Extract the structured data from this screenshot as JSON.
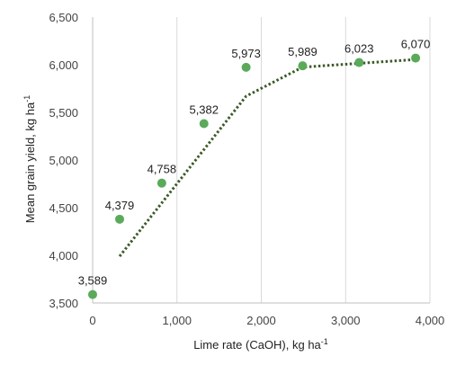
{
  "chart_data": {
    "type": "scatter",
    "title": "",
    "xlabel": "Lime rate (CaOH), kg ha",
    "xlabel_sup": "-1",
    "ylabel": "Mean grain yield, kg ha",
    "ylabel_sup": "-1",
    "xlim": [
      0,
      4000
    ],
    "ylim": [
      3500,
      6500
    ],
    "x_ticks": [
      0,
      1000,
      2000,
      3000,
      4000
    ],
    "x_tick_labels": [
      "0",
      "1,000",
      "2,000",
      "3,000",
      "4,000"
    ],
    "y_ticks": [
      3500,
      4000,
      4500,
      5000,
      5500,
      6000,
      6500
    ],
    "y_tick_labels": [
      "3,500",
      "4,000",
      "4,500",
      "5,000",
      "5,500",
      "6,000",
      "6,500"
    ],
    "grid": "vertical",
    "legend": "none",
    "series": [
      {
        "x": [
          0,
          320,
          820,
          1320,
          1820,
          2490,
          3160,
          3830
        ],
        "y": [
          3589,
          4379,
          4758,
          5382,
          5973,
          5989,
          6023,
          6070
        ],
        "labels": [
          "3,589",
          "4,379",
          "4,758",
          "5,382",
          "5,973",
          "5,989",
          "6,023",
          "6,070"
        ]
      }
    ],
    "trendline": {
      "style": "dotted",
      "x": [
        320,
        1820,
        2490,
        3830
      ],
      "y": [
        3990,
        5670,
        5975,
        6055
      ]
    },
    "colors": {
      "marker": "#5aaa5a",
      "trendline": "#3c5a28",
      "grid": "#d9d9d9",
      "axis": "#bfbfbf"
    }
  }
}
